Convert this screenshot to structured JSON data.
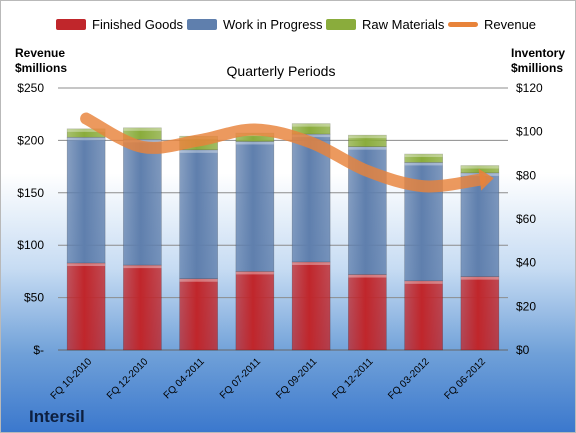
{
  "brand": "Intersil",
  "chart_data": {
    "type": "bar",
    "stacked": true,
    "title": "Quarterly Periods",
    "categories": [
      "FQ 10-2010",
      "FQ 12-2010",
      "FQ 04-2011",
      "FQ 07-2011",
      "FQ 09-2011",
      "FQ 12-2011",
      "FQ 03-2012",
      "FQ 06-2012"
    ],
    "series": [
      {
        "name": "Finished Goods",
        "color": "#c0262b",
        "values": [
          83,
          81,
          68,
          75,
          84,
          72,
          66,
          70
        ]
      },
      {
        "name": "Work in Progress",
        "color": "#5f7fad",
        "values": [
          120,
          120,
          123,
          124,
          122,
          122,
          113,
          99
        ]
      },
      {
        "name": "Raw Materials",
        "color": "#8aac3c",
        "values": [
          8,
          11,
          13,
          8,
          10,
          11,
          8,
          7
        ]
      }
    ],
    "line_series": {
      "name": "Revenue",
      "color": "#e8833a",
      "axis": "right",
      "values": [
        106,
        93,
        96,
        101,
        95,
        82,
        75,
        78
      ]
    },
    "ylabel_left": "Revenue\n$millions",
    "ylabel_right": "Inventory\n$millions",
    "ylim_left": [
      0,
      250
    ],
    "ylim_right": [
      0,
      120
    ],
    "yticks_left": [
      "$-",
      "$50",
      "$100",
      "$150",
      "$200",
      "$250"
    ],
    "yticks_right": [
      "$0",
      "$20",
      "$40",
      "$60",
      "$80",
      "$100",
      "$120"
    ],
    "grid": true,
    "legend_position": "top"
  }
}
